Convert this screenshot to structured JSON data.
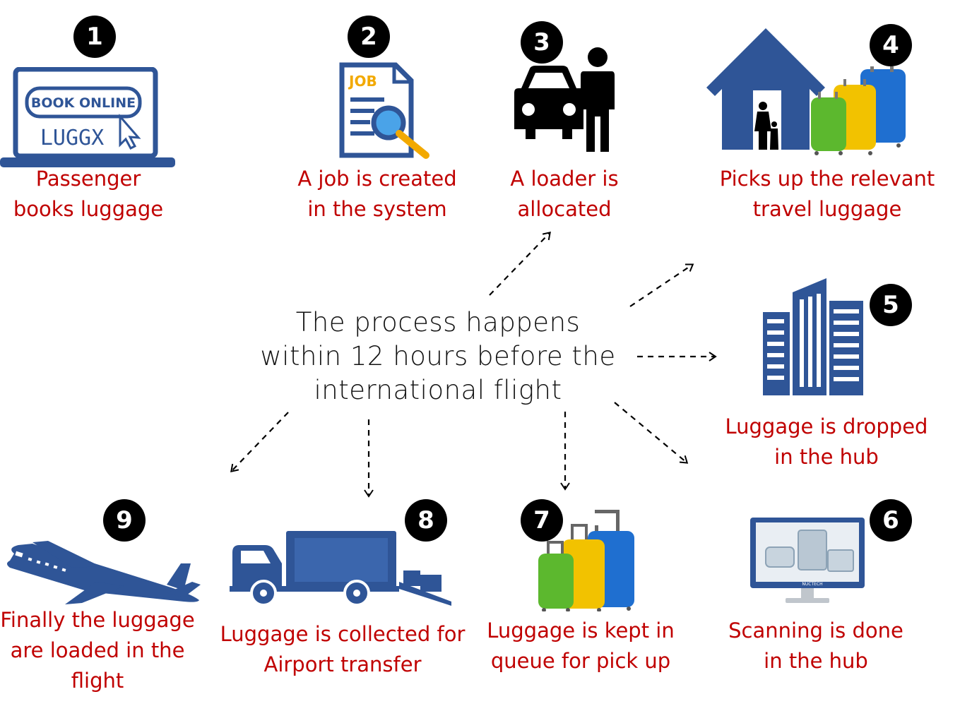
{
  "center_text": "The process happens\nwithin 12 hours before the\ninternational flight",
  "laptop": {
    "book_online": "BOOK ONLINE",
    "brand": "LUGGX"
  },
  "job_icon_text": "JOB",
  "scanner_brand": "NUCTECH",
  "steps": [
    {
      "number": "1",
      "caption": "Passenger\nbooks luggage"
    },
    {
      "number": "2",
      "caption": "A job is created\nin the system"
    },
    {
      "number": "3",
      "caption": "A loader is\nallocated"
    },
    {
      "number": "4",
      "caption": "Picks up the relevant\ntravel luggage"
    },
    {
      "number": "5",
      "caption": "Luggage is dropped\nin the hub"
    },
    {
      "number": "6",
      "caption": "Scanning is done\nin the hub"
    },
    {
      "number": "7",
      "caption": "Luggage is kept in\nqueue for pick up"
    },
    {
      "number": "8",
      "caption": "Luggage is collected for\nAirport transfer"
    },
    {
      "number": "9",
      "caption": "Finally the luggage\nare loaded in the\nflight"
    }
  ],
  "colors": {
    "caption": "#c00000",
    "icon_blue": "#2f5597",
    "badge": "#000000",
    "luggage_blue": "#1f6fd0",
    "luggage_yellow": "#f2c200",
    "luggage_green": "#5cb82e"
  }
}
